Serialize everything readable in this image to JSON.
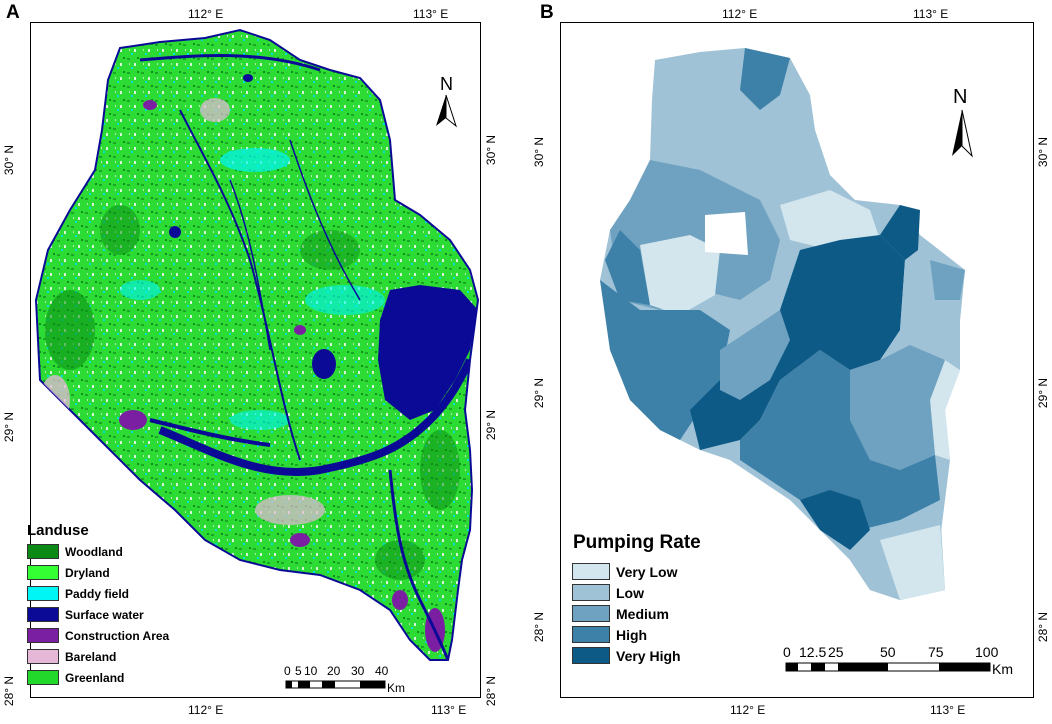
{
  "panels": {
    "a": {
      "letter": "A",
      "top_ticks": [
        "112° E",
        "113° E"
      ],
      "bottom_ticks": [
        "112° E",
        "113° E"
      ],
      "left_ticks": [
        "30° N",
        "29° N",
        "28° N"
      ],
      "right_ticks": [
        "30° N",
        "29° N",
        "28° N"
      ],
      "north": "N",
      "legend": {
        "title": "Landuse",
        "items": [
          {
            "label": "Woodland",
            "color": "#0a8a14"
          },
          {
            "label": "Dryland",
            "color": "#33ff33"
          },
          {
            "label": "Paddy field",
            "color": "#00f5f5"
          },
          {
            "label": "Surface water",
            "color": "#0a0a96"
          },
          {
            "label": "Construction Area",
            "color": "#7b1fa2"
          },
          {
            "label": "Bareland",
            "color": "#e6b8d8"
          },
          {
            "label": "Greenland",
            "color": "#22d82a"
          }
        ]
      },
      "scale": {
        "labels": [
          "0",
          "5",
          "10",
          "20",
          "30",
          "40"
        ],
        "unit": "Km"
      }
    },
    "b": {
      "letter": "B",
      "top_ticks": [
        "112° E",
        "113° E"
      ],
      "bottom_ticks": [
        "112° E",
        "113° E"
      ],
      "left_ticks": [
        "30° N",
        "29° N",
        "28° N"
      ],
      "right_ticks": [
        "30° N",
        "29° N",
        "28° N"
      ],
      "north": "N",
      "legend": {
        "title": "Pumping Rate",
        "items": [
          {
            "label": "Very Low",
            "color": "#d3e6ee"
          },
          {
            "label": "Low",
            "color": "#9fc2d6"
          },
          {
            "label": "Medium",
            "color": "#6fa2c0"
          },
          {
            "label": "High",
            "color": "#3d80a8"
          },
          {
            "label": "Very High",
            "color": "#0e5a86"
          }
        ]
      },
      "scale": {
        "labels": [
          "0",
          "12.5",
          "25",
          "50",
          "75",
          "100"
        ],
        "unit": "Km"
      }
    }
  }
}
